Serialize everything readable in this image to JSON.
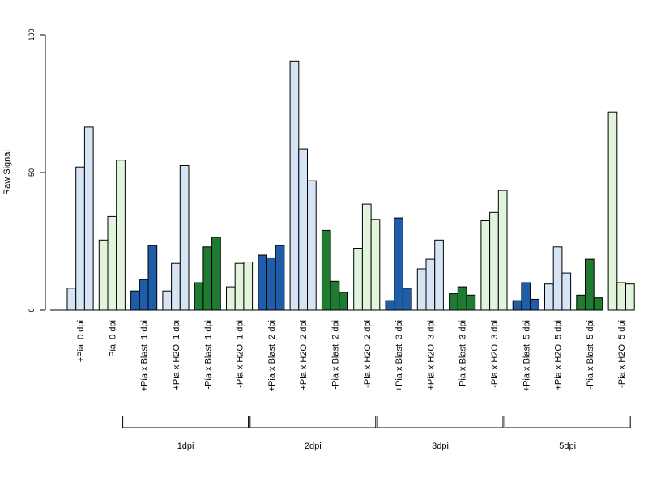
{
  "chart_data": {
    "type": "bar",
    "ylabel": "Raw Signal",
    "xlabel": "",
    "title": "",
    "ylim": [
      0,
      100
    ],
    "yticks": [
      0,
      50,
      100
    ],
    "grid": false,
    "legend": "none",
    "categories": [
      "+Pia, 0 dpi",
      "-Pia, 0 dpi",
      "+Pia x Blast, 1 dpi",
      "+Pia x H2O, 1 dpi",
      "-Pia x Blast, 1 dpi",
      "-Pia x H2O, 1 dpi",
      "+Pia x Blast, 2 dpi",
      "+Pia x H2O, 2 dpi",
      "-Pia x Blast, 2 dpi",
      "-Pia x H2O, 2 dpi",
      "+Pia x Blast, 3 dpi",
      "+Pia x H2O, 3 dpi",
      "-Pia x Blast, 3 dpi",
      "-Pia x H2O, 3 dpi",
      "+Pia x Blast, 5 dpi",
      "+Pia x H2O, 5 dpi",
      "-Pia x Blast, 5 dpi",
      "-Pia x H2O, 5 dpi"
    ],
    "colors": [
      "#D6E4F5",
      "#E2F5DC",
      "#1F5DA8",
      "#D6E4F5",
      "#1F7A32",
      "#E2F5DC",
      "#1F5DA8",
      "#D6E4F5",
      "#1F7A32",
      "#E2F5DC",
      "#1F5DA8",
      "#D6E4F5",
      "#1F7A32",
      "#E2F5DC",
      "#1F5DA8",
      "#D6E4F5",
      "#1F7A32",
      "#E2F5DC"
    ],
    "values": [
      [
        8,
        52,
        66.5
      ],
      [
        25.5,
        34,
        54.5
      ],
      [
        7,
        11,
        23.5
      ],
      [
        7,
        17,
        52.5
      ],
      [
        10,
        23,
        26.5
      ],
      [
        8.5,
        17,
        17.5
      ],
      [
        20,
        19,
        23.5
      ],
      [
        90.5,
        58.5,
        47
      ],
      [
        29,
        10.5,
        6.5
      ],
      [
        22.5,
        38.5,
        33
      ],
      [
        3.5,
        33.5,
        8
      ],
      [
        15,
        18.5,
        25.5
      ],
      [
        6,
        8.5,
        5.5
      ],
      [
        32.5,
        35.5,
        43.5
      ],
      [
        3.5,
        10,
        4
      ],
      [
        9.5,
        23,
        13.5
      ],
      [
        5.5,
        18.5,
        4.5
      ],
      [
        72,
        10,
        9.5
      ]
    ],
    "groups": [
      {
        "label": "1dpi",
        "from": 2,
        "to": 5
      },
      {
        "label": "2dpi",
        "from": 6,
        "to": 9
      },
      {
        "label": "3dpi",
        "from": 10,
        "to": 13
      },
      {
        "label": "5dpi",
        "from": 14,
        "to": 17
      }
    ]
  }
}
